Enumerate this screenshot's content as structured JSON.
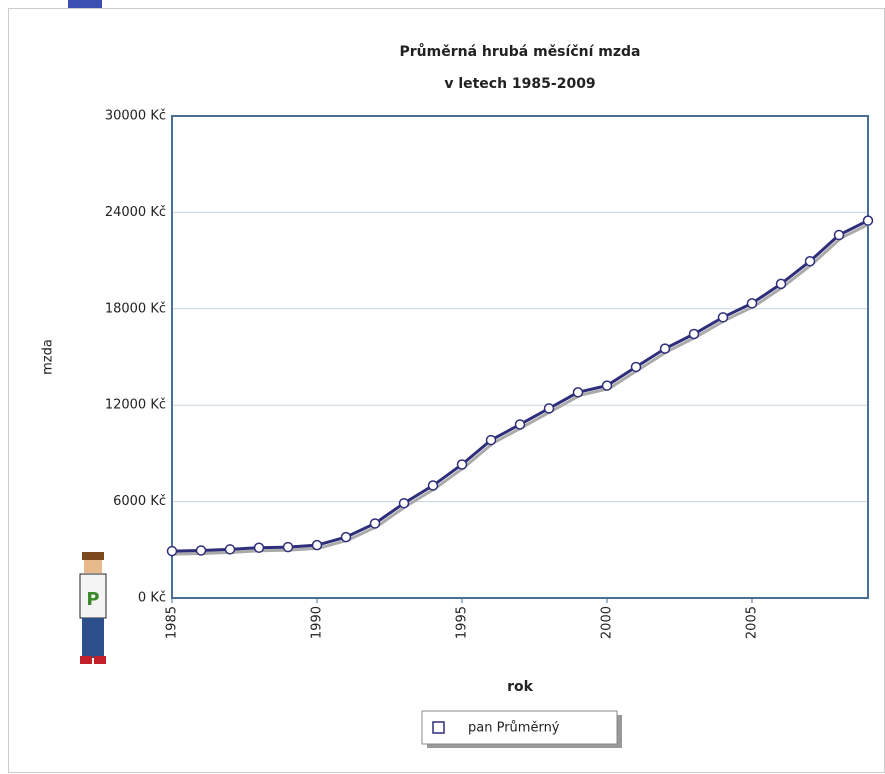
{
  "chart_data": {
    "type": "line",
    "title": "Průměrná hrubá měsíční mzda",
    "subtitle": "v letech 1985-2009",
    "x_label": "rok",
    "y_label": "mzda",
    "x": [
      1985,
      1986,
      1987,
      1988,
      1989,
      1990,
      1991,
      1992,
      1993,
      1994,
      1995,
      1996,
      1997,
      1998,
      1999,
      2000,
      2001,
      2002,
      2003,
      2004,
      2005,
      2006,
      2007,
      2008,
      2009
    ],
    "series": [
      {
        "name": "pan Průměrný",
        "color": "#2e2e7a",
        "values": [
          2920,
          2960,
          3030,
          3130,
          3170,
          3290,
          3790,
          4640,
          5900,
          7000,
          8310,
          9830,
          10800,
          11800,
          12800,
          13220,
          14380,
          15520,
          16430,
          17470,
          18340,
          19550,
          20960,
          22590,
          23490
        ]
      }
    ],
    "xlim": [
      1985,
      2009
    ],
    "xticks": [
      1985,
      1990,
      1995,
      2000,
      2005
    ],
    "ylim": [
      0,
      30000
    ],
    "yticks": [
      {
        "value": 0,
        "label": "0 Kč"
      },
      {
        "value": 6000,
        "label": "6000 Kč"
      },
      {
        "value": 12000,
        "label": "12000 Kč"
      },
      {
        "value": 18000,
        "label": "18000 Kč"
      },
      {
        "value": 24000,
        "label": "24000 Kč"
      },
      {
        "value": 30000,
        "label": "30000 Kč"
      }
    ],
    "grid": true
  }
}
